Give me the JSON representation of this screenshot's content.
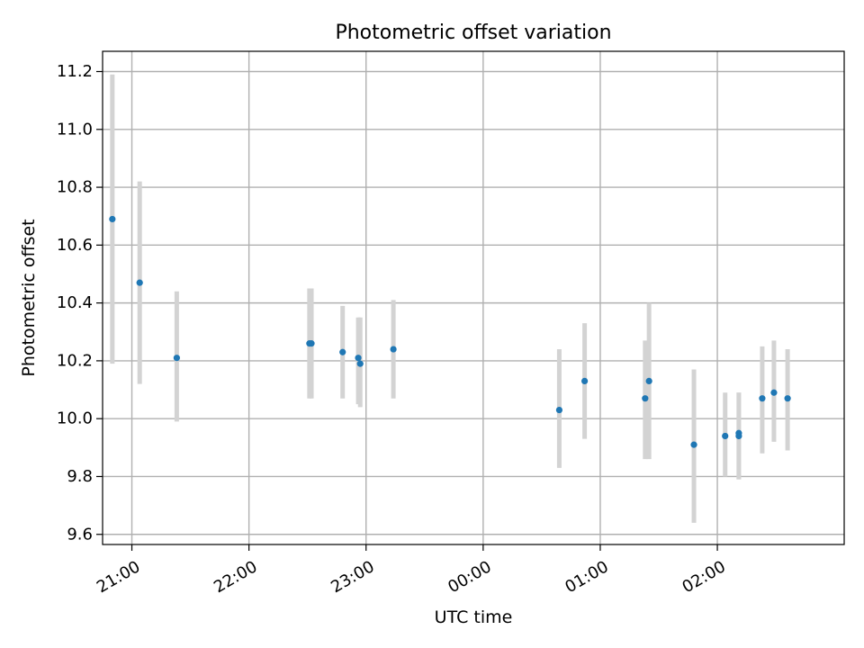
{
  "chart_data": {
    "type": "scatter",
    "title": "Photometric offset variation",
    "xlabel": "UTC time",
    "ylabel": "Photometric offset",
    "x_kind": "time",
    "xlim": [
      "20:45",
      "03:05"
    ],
    "ylim": [
      9.565,
      11.27
    ],
    "xticks": [
      {
        "time": "21:00",
        "label": "21:00"
      },
      {
        "time": "22:00",
        "label": "22:00"
      },
      {
        "time": "23:00",
        "label": "23:00"
      },
      {
        "time": "00:00",
        "label": "00:00"
      },
      {
        "time": "01:00",
        "label": "01:00"
      },
      {
        "time": "02:00",
        "label": "02:00"
      }
    ],
    "yticks": [
      9.6,
      9.8,
      10.0,
      10.2,
      10.4,
      10.6,
      10.8,
      11.0,
      11.2
    ],
    "ytick_labels": [
      "9.6",
      "9.8",
      "10.0",
      "10.2",
      "10.4",
      "10.6",
      "10.8",
      "11.0",
      "11.2"
    ],
    "grid": true,
    "legend": null,
    "colors": {
      "point": "#1f77b4",
      "errorbar": "#d3d3d3",
      "grid": "#b0b0b0"
    },
    "points": [
      {
        "time": "20:50",
        "y": 10.69,
        "err_low": 10.19,
        "err_high": 11.19
      },
      {
        "time": "21:04",
        "y": 10.47,
        "err_low": 10.12,
        "err_high": 10.82
      },
      {
        "time": "21:23",
        "y": 10.21,
        "err_low": 9.99,
        "err_high": 10.44
      },
      {
        "time": "22:31",
        "y": 10.26,
        "err_low": 10.07,
        "err_high": 10.45
      },
      {
        "time": "22:32",
        "y": 10.26,
        "err_low": 10.07,
        "err_high": 10.45
      },
      {
        "time": "22:48",
        "y": 10.23,
        "err_low": 10.07,
        "err_high": 10.39
      },
      {
        "time": "22:56",
        "y": 10.21,
        "err_low": 10.05,
        "err_high": 10.35
      },
      {
        "time": "22:57",
        "y": 10.19,
        "err_low": 10.04,
        "err_high": 10.35
      },
      {
        "time": "23:14",
        "y": 10.24,
        "err_low": 10.07,
        "err_high": 10.41
      },
      {
        "time": "00:39",
        "y": 10.03,
        "err_low": 9.83,
        "err_high": 10.24
      },
      {
        "time": "00:52",
        "y": 10.13,
        "err_low": 9.93,
        "err_high": 10.33
      },
      {
        "time": "01:23",
        "y": 10.07,
        "err_low": 9.86,
        "err_high": 10.27
      },
      {
        "time": "01:25",
        "y": 10.13,
        "err_low": 9.86,
        "err_high": 10.4
      },
      {
        "time": "01:48",
        "y": 9.91,
        "err_low": 9.64,
        "err_high": 10.17
      },
      {
        "time": "02:04",
        "y": 9.94,
        "err_low": 9.8,
        "err_high": 10.09
      },
      {
        "time": "02:11",
        "y": 9.94,
        "err_low": 9.79,
        "err_high": 10.09
      },
      {
        "time": "02:11",
        "y": 9.95,
        "err_low": 9.79,
        "err_high": 10.09
      },
      {
        "time": "02:23",
        "y": 10.07,
        "err_low": 9.88,
        "err_high": 10.25
      },
      {
        "time": "02:29",
        "y": 10.09,
        "err_low": 9.92,
        "err_high": 10.27
      },
      {
        "time": "02:36",
        "y": 10.07,
        "err_low": 9.89,
        "err_high": 10.24
      }
    ]
  }
}
